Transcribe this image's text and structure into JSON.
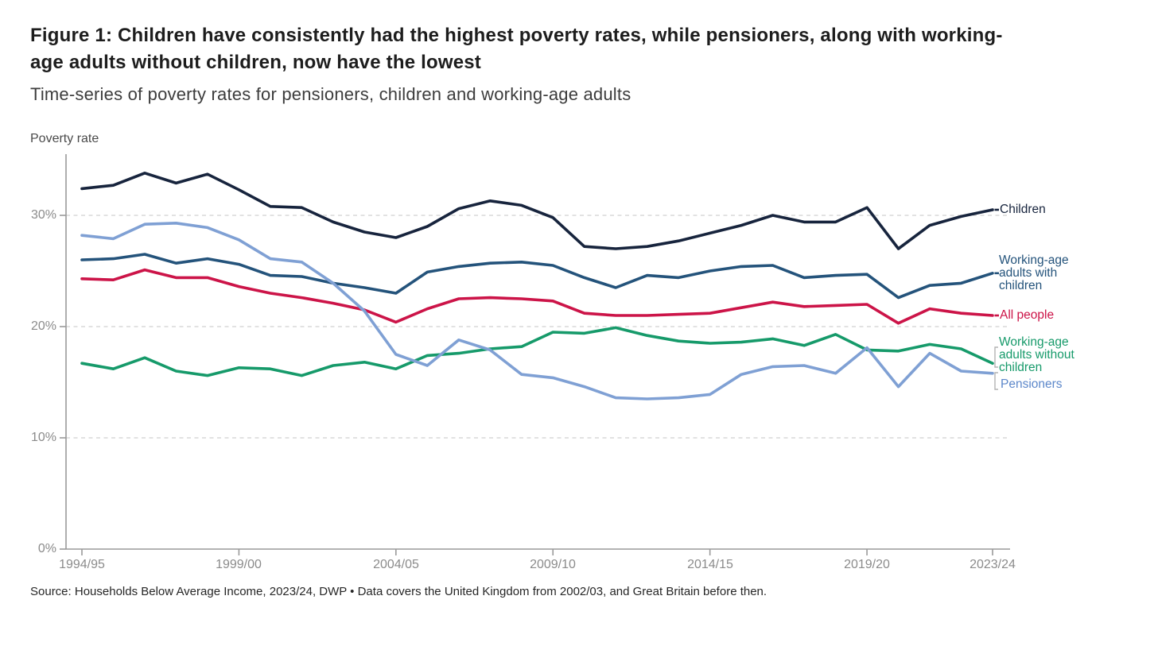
{
  "figure": {
    "title": "Figure 1: Children have consistently had the highest poverty rates, while pensioners, along with working-age adults without children, now have the lowest",
    "subtitle": "Time-series of poverty rates for pensioners, children and working-age adults",
    "y_axis_title": "Poverty rate",
    "source": "Source: Households Below Average Income, 2023/24, DWP • Data covers the United Kingdom from 2002/03, and Great Britain before then."
  },
  "legend": {
    "children": "Children",
    "wa_with_children": "Working-age\nadults with\nchildren",
    "all_people": "All people",
    "wa_without_children": "Working-age\nadults without\nchildren",
    "pensioners": "Pensioners"
  },
  "chart_data": {
    "type": "line",
    "unit": "%",
    "ylim": [
      0,
      35.5
    ],
    "grid": "horizontal-dashed",
    "legend_position": "right-direct-labels",
    "grid_color": "#d9d9d9",
    "axis_color": "#9a9a9a",
    "bracket_color": "#b3b3b3",
    "x": [
      "1994/95",
      "1995/96",
      "1996/97",
      "1997/98",
      "1998/99",
      "1999/00",
      "2000/01",
      "2001/02",
      "2002/03",
      "2003/04",
      "2004/05",
      "2005/06",
      "2006/07",
      "2007/08",
      "2008/09",
      "2009/10",
      "2010/11",
      "2011/12",
      "2012/13",
      "2013/14",
      "2014/15",
      "2015/16",
      "2016/17",
      "2017/18",
      "2018/19",
      "2019/20",
      "2020/21",
      "2021/22",
      "2022/23",
      "2023/24"
    ],
    "x_tick_labels": [
      "1994/95",
      "1999/00",
      "2004/05",
      "2009/10",
      "2014/15",
      "2019/20",
      "2023/24"
    ],
    "x_tick_indices": [
      0,
      5,
      10,
      15,
      20,
      25,
      29
    ],
    "y_tick_labels": [
      "0%",
      "10%",
      "20%",
      "30%"
    ],
    "y_tick_values": [
      0,
      10,
      20,
      30
    ],
    "series": [
      {
        "key": "children",
        "name": "Children",
        "color": "#17243d",
        "values": [
          32.4,
          32.7,
          33.8,
          32.9,
          33.7,
          32.3,
          30.8,
          30.7,
          29.4,
          28.5,
          28.0,
          29.0,
          30.6,
          31.3,
          30.9,
          29.8,
          27.2,
          27.0,
          27.2,
          27.7,
          28.4,
          29.1,
          30.0,
          29.4,
          29.4,
          30.7,
          27.0,
          29.1,
          29.9,
          30.5
        ]
      },
      {
        "key": "working-age-adults-with-children",
        "name": "Working-age adults with children",
        "color": "#24537b",
        "values": [
          26.0,
          26.1,
          26.5,
          25.7,
          26.1,
          25.6,
          24.6,
          24.5,
          23.9,
          23.5,
          23.0,
          24.9,
          25.4,
          25.7,
          25.8,
          25.5,
          24.4,
          23.5,
          24.6,
          24.4,
          25.0,
          25.4,
          25.5,
          24.4,
          24.6,
          24.7,
          22.6,
          23.7,
          23.9,
          24.8
        ]
      },
      {
        "key": "all-people",
        "name": "All people",
        "color": "#cc1448",
        "values": [
          24.3,
          24.2,
          25.1,
          24.4,
          24.4,
          23.6,
          23.0,
          22.6,
          22.1,
          21.5,
          20.4,
          21.6,
          22.5,
          22.6,
          22.5,
          22.3,
          21.2,
          21.0,
          21.0,
          21.1,
          21.2,
          21.7,
          22.2,
          21.8,
          21.9,
          22.0,
          20.3,
          21.6,
          21.2,
          21.0
        ]
      },
      {
        "key": "working-age-adults-without-children",
        "name": "Working-age adults without children",
        "color": "#169a6a",
        "values": [
          16.7,
          16.2,
          17.2,
          16.0,
          15.6,
          16.3,
          16.2,
          15.6,
          16.5,
          16.8,
          16.2,
          17.4,
          17.6,
          18.0,
          18.2,
          19.5,
          19.4,
          19.9,
          19.2,
          18.7,
          18.5,
          18.6,
          18.9,
          18.3,
          19.3,
          17.9,
          17.8,
          18.4,
          18.0,
          16.7
        ]
      },
      {
        "key": "pensioners",
        "name": "Pensioners",
        "color": "#7fa0d4",
        "label_color": "#5c87ca",
        "values": [
          28.2,
          27.9,
          29.2,
          29.3,
          28.9,
          27.8,
          26.1,
          25.8,
          23.9,
          21.4,
          17.5,
          16.5,
          18.8,
          17.9,
          15.7,
          15.4,
          14.6,
          13.6,
          13.5,
          13.6,
          13.9,
          15.7,
          16.4,
          16.5,
          15.8,
          18.1,
          14.6,
          17.6,
          16.0,
          15.8
        ]
      }
    ]
  }
}
